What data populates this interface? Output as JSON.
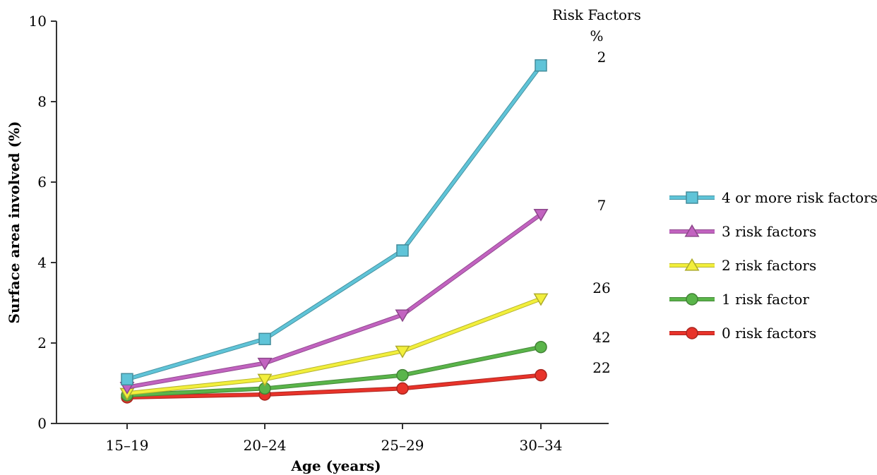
{
  "chart_data": {
    "type": "line",
    "title": "",
    "xlabel": "Age (years)",
    "ylabel": "Surface area involved (%)",
    "categories": [
      "15–19",
      "20–24",
      "25–29",
      "30–34"
    ],
    "ylim": [
      0,
      10
    ],
    "yticks": [
      "0",
      "2",
      "4",
      "6",
      "8",
      "10"
    ],
    "grid": false,
    "legend_position": "right",
    "risk_factors_header": [
      "Risk Factors",
      "%"
    ],
    "series": [
      {
        "name": "4 or more risk factors",
        "values": [
          1.1,
          2.1,
          4.3,
          8.9
        ],
        "marker": "square",
        "color": "#5fc4d8",
        "risk_pct": "2"
      },
      {
        "name": "3 risk factors",
        "values": [
          0.9,
          1.5,
          2.7,
          5.2
        ],
        "marker": "triangle-down",
        "color": "#c263c0",
        "risk_pct": "7"
      },
      {
        "name": "2 risk factors",
        "values": [
          0.75,
          1.1,
          1.8,
          3.1
        ],
        "marker": "triangle-down",
        "color": "#f2ef3c",
        "risk_pct": "26"
      },
      {
        "name": "1 risk factor",
        "values": [
          0.7,
          0.87,
          1.2,
          1.9
        ],
        "marker": "circle",
        "color": "#5ab54a",
        "risk_pct": "42"
      },
      {
        "name": "0 risk factors",
        "values": [
          0.65,
          0.72,
          0.87,
          1.2
        ],
        "marker": "circle",
        "color": "#e8332a",
        "risk_pct": "22"
      }
    ]
  }
}
